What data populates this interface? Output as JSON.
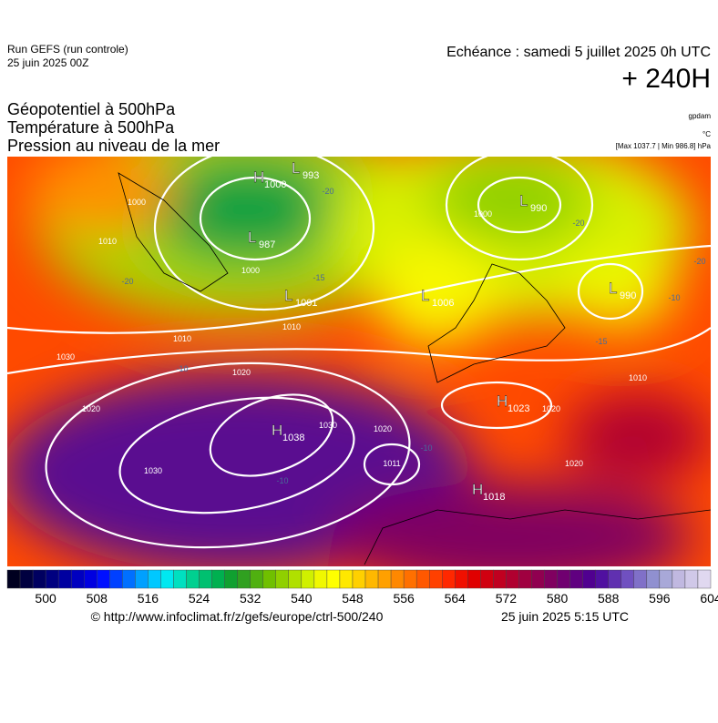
{
  "header": {
    "run": "Run GEFS (run controle)",
    "run_date": "25 juin 2025 00Z",
    "valid": "Echéance : samedi 5 juillet 2025 0h UTC",
    "lead": "+ 240H",
    "fields": [
      "Géopotentiel à 500hPa",
      "Température à 500hPa",
      "Pression au niveau de la mer"
    ],
    "units": [
      "gpdam",
      "°C",
      "[Max 1037.7 | Min 986.8] hPa"
    ]
  },
  "map": {
    "centres": [
      {
        "letter": "H",
        "value": 1000
      },
      {
        "letter": "L",
        "value": 993
      },
      {
        "letter": "L",
        "value": 987
      },
      {
        "letter": "L",
        "value": 1001
      },
      {
        "letter": "L",
        "value": 990
      },
      {
        "letter": "L",
        "value": 1006
      },
      {
        "letter": "L",
        "value": 990
      },
      {
        "letter": "H",
        "value": 1023
      },
      {
        "letter": "H",
        "value": 1038
      },
      {
        "letter": "H",
        "value": 1018
      }
    ],
    "isobar_labels": [
      1000,
      1000,
      1010,
      1000,
      1010,
      1010,
      1020,
      1020,
      1020,
      1030,
      1030,
      1020,
      1011,
      1020,
      1010,
      1030
    ],
    "temperature_labels": [
      -20,
      -20,
      -20,
      -15,
      -10,
      -10,
      -10,
      -20,
      -10,
      -15
    ]
  },
  "colorbar": {
    "ticks": [
      500,
      508,
      516,
      524,
      532,
      540,
      548,
      556,
      564,
      572,
      580,
      588,
      596,
      604
    ],
    "colors": [
      "#000020",
      "#000040",
      "#000060",
      "#000080",
      "#0000a0",
      "#0000c0",
      "#0000e0",
      "#0010ff",
      "#0040ff",
      "#0070ff",
      "#00a0ff",
      "#00c8ff",
      "#00e8f0",
      "#00e0c0",
      "#00d090",
      "#00c070",
      "#00b050",
      "#10a030",
      "#30a020",
      "#50b010",
      "#70c000",
      "#90d000",
      "#b0e000",
      "#d0f000",
      "#f0f800",
      "#ffff00",
      "#ffe800",
      "#ffd000",
      "#ffb800",
      "#ffa000",
      "#ff8800",
      "#ff7000",
      "#ff5800",
      "#ff4000",
      "#ff2800",
      "#f01000",
      "#e00000",
      "#d00010",
      "#c00020",
      "#b00030",
      "#a00040",
      "#900050",
      "#800060",
      "#700070",
      "#600080",
      "#500090",
      "#5010a0",
      "#6030b0",
      "#7050c0",
      "#8070c8",
      "#9090d0",
      "#a8a8d8",
      "#c0b8e0",
      "#d0c8e8",
      "#e0d8f0"
    ]
  },
  "footer": {
    "source": "© http://www.infoclimat.fr/z/gefs/europe/ctrl-500/240",
    "issued": "25 juin 2025  5:15 UTC"
  }
}
